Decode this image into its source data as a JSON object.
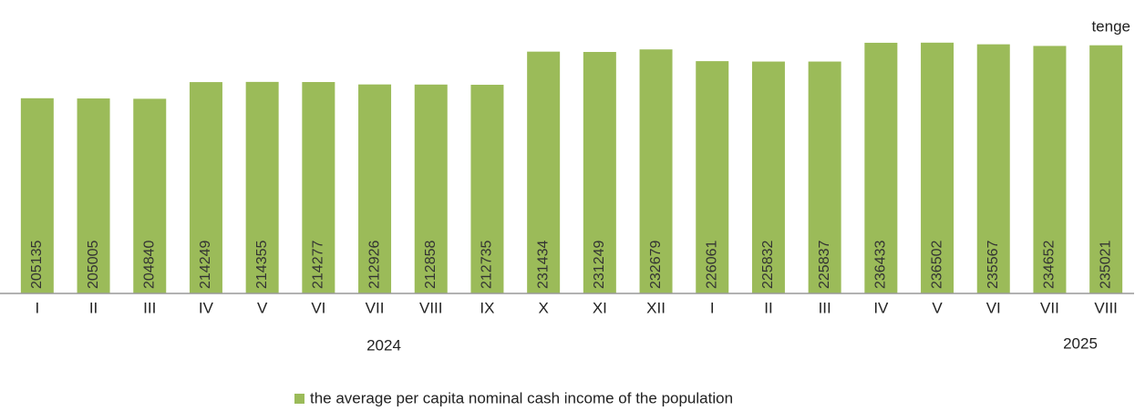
{
  "chart_data": {
    "type": "bar",
    "unit": "tenge",
    "categories": [
      "I",
      "II",
      "III",
      "IV",
      "V",
      "VI",
      "VII",
      "VIII",
      "IX",
      "X",
      "XI",
      "XII",
      "I",
      "II",
      "III",
      "IV",
      "V",
      "VI",
      "VII",
      "VIII"
    ],
    "x_group_labels": [
      "2024",
      "2025"
    ],
    "series": [
      {
        "name": "the average per capita nominal cash income of the population",
        "color": "#9bbb59",
        "values": [
          205135,
          205005,
          204840,
          214249,
          214355,
          214277,
          212926,
          212858,
          212735,
          231434,
          231249,
          232679,
          226061,
          225832,
          225837,
          236433,
          236502,
          235567,
          234652,
          235021
        ]
      }
    ],
    "ylim": [
      95000,
      240000
    ]
  }
}
